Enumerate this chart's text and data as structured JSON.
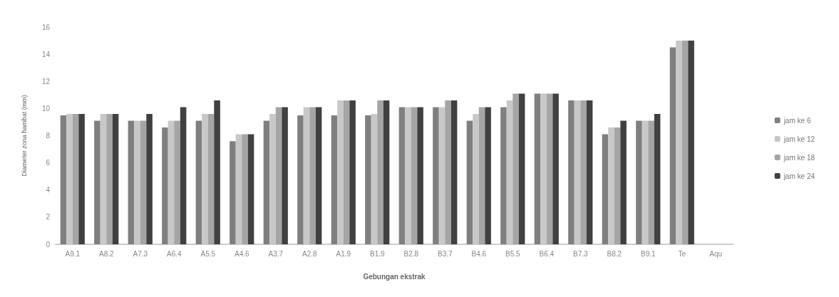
{
  "chart_data": {
    "type": "bar",
    "xlabel": "Gebungan ekstrak",
    "ylabel": "Diameter zona hambat (mm)",
    "categories": [
      "A9.1",
      "A8.2",
      "A7.3",
      "A6.4",
      "A5.5",
      "A4.6",
      "A3.7",
      "A2.8",
      "A1.9",
      "B1.9",
      "B2.8",
      "B3.7",
      "B4.6",
      "B5.5",
      "B6.4",
      "B7.3",
      "B8.2",
      "B9.1",
      "Te",
      "Aqu"
    ],
    "series": [
      {
        "name": "jam ke 6",
        "color": "#7f7f7f",
        "values": [
          9.5,
          9.1,
          9.1,
          8.6,
          9.1,
          7.6,
          9.1,
          9.5,
          9.5,
          9.5,
          10.1,
          10.1,
          9.1,
          10.1,
          11.1,
          10.6,
          8.1,
          9.1,
          14.5,
          null
        ]
      },
      {
        "name": "jam ke 12",
        "color": "#c8c8c8",
        "values": [
          9.6,
          9.6,
          9.1,
          9.1,
          9.6,
          8.1,
          9.6,
          10.1,
          10.6,
          9.6,
          10.1,
          10.1,
          9.6,
          10.6,
          11.1,
          10.6,
          8.6,
          9.1,
          15,
          null
        ]
      },
      {
        "name": "jam ke 18",
        "color": "#a5a5a5",
        "values": [
          9.6,
          9.6,
          9.1,
          9.1,
          9.6,
          8.1,
          10.1,
          10.1,
          10.6,
          10.6,
          10.1,
          10.6,
          10.1,
          11.1,
          11.1,
          10.6,
          8.6,
          9.1,
          15,
          null
        ]
      },
      {
        "name": "jam ke 24",
        "color": "#404040",
        "values": [
          9.6,
          9.6,
          9.6,
          10.1,
          10.6,
          8.1,
          10.1,
          10.1,
          10.6,
          10.6,
          10.1,
          10.6,
          10.1,
          11.1,
          11.1,
          10.6,
          9.1,
          9.6,
          15,
          null
        ]
      }
    ],
    "ylim": [
      0,
      16
    ],
    "yticks": [
      0,
      2,
      4,
      6,
      8,
      10,
      12,
      14,
      16
    ],
    "grid": false,
    "legend": "right"
  }
}
